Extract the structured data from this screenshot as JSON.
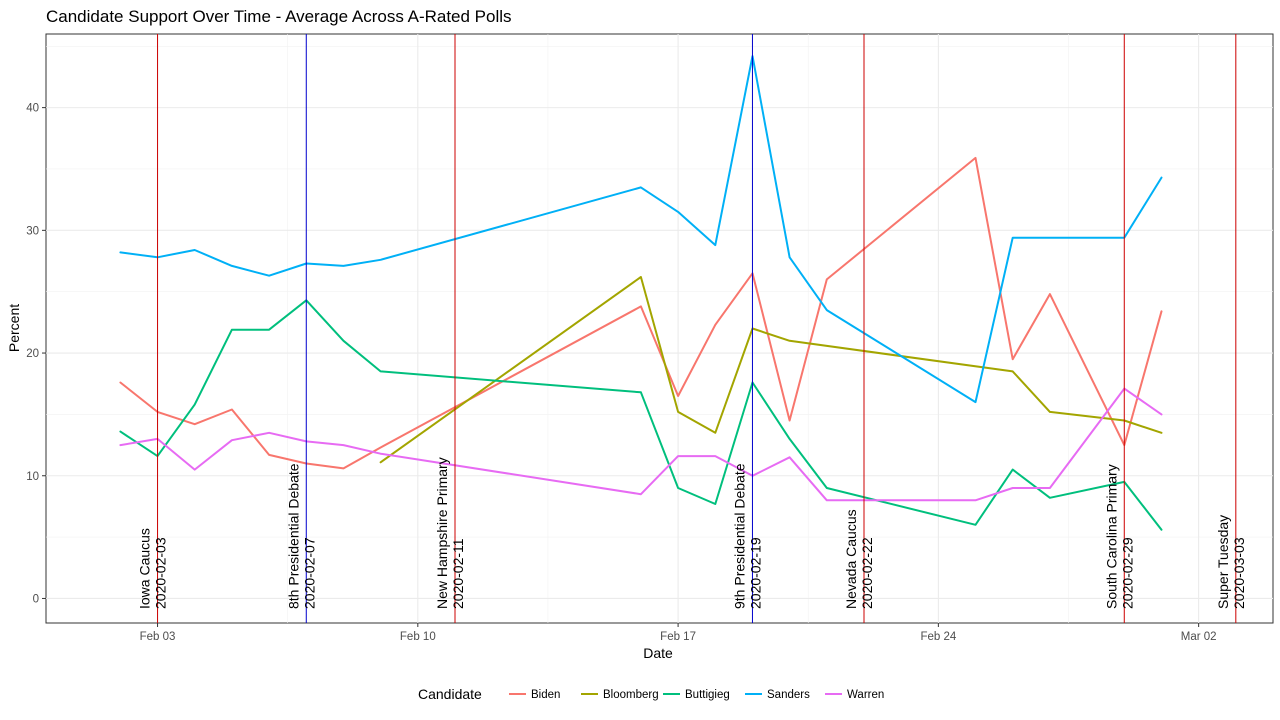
{
  "chart_data": {
    "type": "line",
    "title": "Candidate Support Over Time - Average Across A-Rated Polls",
    "xlabel": "Date",
    "ylabel": "Percent",
    "xlim": [
      "2020-01-31",
      "2020-03-04"
    ],
    "ylim": [
      -2,
      46
    ],
    "x_ticks": [
      {
        "date": "2020-02-03",
        "label": "Feb 03"
      },
      {
        "date": "2020-02-10",
        "label": "Feb 10"
      },
      {
        "date": "2020-02-17",
        "label": "Feb 17"
      },
      {
        "date": "2020-02-24",
        "label": "Feb 24"
      },
      {
        "date": "2020-03-02",
        "label": "Mar 02"
      }
    ],
    "y_ticks": [
      0,
      10,
      20,
      30,
      40
    ],
    "grid": true,
    "legend": {
      "title": "Candidate",
      "position": "bottom"
    },
    "events": [
      {
        "name": "Iowa Caucus",
        "date": "2020-02-03",
        "color": "#cc0000"
      },
      {
        "name": "8th Presidential Debate",
        "date": "2020-02-07",
        "color": "#0000cc"
      },
      {
        "name": "New Hampshire Primary",
        "date": "2020-02-11",
        "color": "#cc0000"
      },
      {
        "name": "9th Presidential Debate",
        "date": "2020-02-19",
        "color": "#0000cc"
      },
      {
        "name": "Nevada Caucus",
        "date": "2020-02-22",
        "color": "#cc0000"
      },
      {
        "name": "South Carolina Primary",
        "date": "2020-02-29",
        "color": "#cc0000"
      },
      {
        "name": "Super Tuesday",
        "date": "2020-03-03",
        "color": "#cc0000"
      }
    ],
    "series": [
      {
        "name": "Biden",
        "color": "#F8766D",
        "points": [
          [
            "2020-02-02",
            17.6
          ],
          [
            "2020-02-03",
            15.2
          ],
          [
            "2020-02-04",
            14.2
          ],
          [
            "2020-02-05",
            15.4
          ],
          [
            "2020-02-06",
            11.7
          ],
          [
            "2020-02-07",
            11.0
          ],
          [
            "2020-02-08",
            10.6
          ],
          [
            "2020-02-09",
            12.3
          ],
          [
            "2020-02-16",
            23.8
          ],
          [
            "2020-02-17",
            16.5
          ],
          [
            "2020-02-18",
            22.3
          ],
          [
            "2020-02-19",
            26.5
          ],
          [
            "2020-02-20",
            14.5
          ],
          [
            "2020-02-21",
            26.0
          ],
          [
            "2020-02-25",
            35.9
          ],
          [
            "2020-02-26",
            19.5
          ],
          [
            "2020-02-27",
            24.8
          ],
          [
            "2020-02-29",
            12.5
          ],
          [
            "2020-03-01",
            23.4
          ]
        ]
      },
      {
        "name": "Bloomberg",
        "color": "#A3A500",
        "points": [
          [
            "2020-02-09",
            11.1
          ],
          [
            "2020-02-16",
            26.2
          ],
          [
            "2020-02-17",
            15.2
          ],
          [
            "2020-02-18",
            13.5
          ],
          [
            "2020-02-19",
            22.0
          ],
          [
            "2020-02-20",
            21.0
          ],
          [
            "2020-02-26",
            18.5
          ],
          [
            "2020-02-27",
            15.2
          ],
          [
            "2020-02-29",
            14.5
          ],
          [
            "2020-03-01",
            13.5
          ]
        ]
      },
      {
        "name": "Buttigieg",
        "color": "#00BF7D",
        "points": [
          [
            "2020-02-02",
            13.6
          ],
          [
            "2020-02-03",
            11.6
          ],
          [
            "2020-02-04",
            15.8
          ],
          [
            "2020-02-05",
            21.9
          ],
          [
            "2020-02-06",
            21.9
          ],
          [
            "2020-02-07",
            24.3
          ],
          [
            "2020-02-08",
            21.0
          ],
          [
            "2020-02-09",
            18.5
          ],
          [
            "2020-02-16",
            16.8
          ],
          [
            "2020-02-17",
            9.0
          ],
          [
            "2020-02-18",
            7.7
          ],
          [
            "2020-02-19",
            17.6
          ],
          [
            "2020-02-20",
            13.0
          ],
          [
            "2020-02-21",
            9.0
          ],
          [
            "2020-02-25",
            6.0
          ],
          [
            "2020-02-26",
            10.5
          ],
          [
            "2020-02-27",
            8.2
          ],
          [
            "2020-02-29",
            9.5
          ],
          [
            "2020-03-01",
            5.6
          ]
        ]
      },
      {
        "name": "Sanders",
        "color": "#00B0F6",
        "points": [
          [
            "2020-02-02",
            28.2
          ],
          [
            "2020-02-03",
            27.8
          ],
          [
            "2020-02-04",
            28.4
          ],
          [
            "2020-02-05",
            27.1
          ],
          [
            "2020-02-06",
            26.3
          ],
          [
            "2020-02-07",
            27.3
          ],
          [
            "2020-02-08",
            27.1
          ],
          [
            "2020-02-09",
            27.6
          ],
          [
            "2020-02-16",
            33.5
          ],
          [
            "2020-02-17",
            31.5
          ],
          [
            "2020-02-18",
            28.8
          ],
          [
            "2020-02-19",
            44.2
          ],
          [
            "2020-02-20",
            27.8
          ],
          [
            "2020-02-21",
            23.5
          ],
          [
            "2020-02-25",
            16.0
          ],
          [
            "2020-02-26",
            29.4
          ],
          [
            "2020-02-29",
            29.4
          ],
          [
            "2020-03-01",
            34.3
          ]
        ]
      },
      {
        "name": "Warren",
        "color": "#E76BF3",
        "points": [
          [
            "2020-02-02",
            12.5
          ],
          [
            "2020-02-03",
            13.0
          ],
          [
            "2020-02-04",
            10.5
          ],
          [
            "2020-02-05",
            12.9
          ],
          [
            "2020-02-06",
            13.5
          ],
          [
            "2020-02-07",
            12.8
          ],
          [
            "2020-02-08",
            12.5
          ],
          [
            "2020-02-09",
            11.8
          ],
          [
            "2020-02-16",
            8.5
          ],
          [
            "2020-02-17",
            11.6
          ],
          [
            "2020-02-18",
            11.6
          ],
          [
            "2020-02-19",
            10.0
          ],
          [
            "2020-02-20",
            11.5
          ],
          [
            "2020-02-21",
            8.0
          ],
          [
            "2020-02-25",
            8.0
          ],
          [
            "2020-02-26",
            9.0
          ],
          [
            "2020-02-27",
            9.0
          ],
          [
            "2020-02-29",
            17.1
          ],
          [
            "2020-03-01",
            15.0
          ]
        ]
      }
    ]
  }
}
